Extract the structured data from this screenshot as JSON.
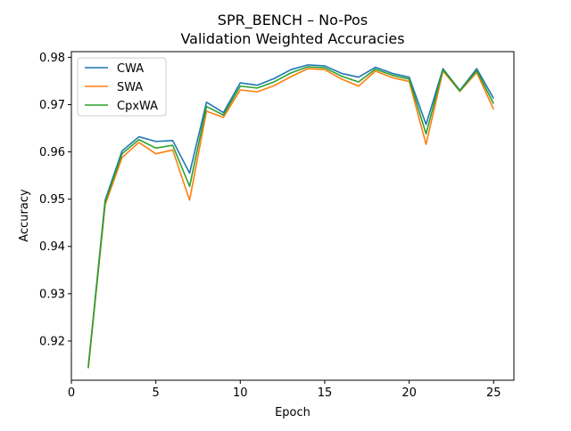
{
  "chart_data": {
    "type": "line",
    "title": "SPR_BENCH – No-Pos",
    "subtitle": "Validation Weighted Accuracies",
    "xlabel": "Epoch",
    "ylabel": "Accuracy",
    "xlim": [
      0,
      26.2
    ],
    "ylim": [
      0.9117,
      0.9812
    ],
    "xticks": [
      0,
      5,
      10,
      15,
      20,
      25
    ],
    "yticks": [
      0.92,
      0.93,
      0.94,
      0.95,
      0.96,
      0.97,
      0.98
    ],
    "grid": false,
    "legend_position": "top-left",
    "x": [
      1,
      2,
      3,
      4,
      5,
      6,
      7,
      8,
      9,
      10,
      11,
      12,
      13,
      14,
      15,
      16,
      17,
      18,
      19,
      20,
      21,
      22,
      23,
      24,
      25
    ],
    "series": [
      {
        "name": "CWA",
        "color": "#1f77b4",
        "values": [
          0.9145,
          0.9498,
          0.9602,
          0.9632,
          0.9622,
          0.9624,
          0.9555,
          0.9705,
          0.9683,
          0.9746,
          0.9741,
          0.9755,
          0.9774,
          0.9784,
          0.9782,
          0.9766,
          0.9758,
          0.9779,
          0.9766,
          0.9758,
          0.9658,
          0.9776,
          0.973,
          0.9776,
          0.9713
        ]
      },
      {
        "name": "SWA",
        "color": "#ff7f0e",
        "values": [
          0.9142,
          0.9488,
          0.9588,
          0.962,
          0.9596,
          0.9604,
          0.9498,
          0.9686,
          0.9673,
          0.9731,
          0.9727,
          0.974,
          0.9759,
          0.9776,
          0.9774,
          0.9754,
          0.9739,
          0.9771,
          0.9757,
          0.9749,
          0.9616,
          0.9771,
          0.9728,
          0.9768,
          0.969
        ]
      },
      {
        "name": "CpxWA",
        "color": "#2ca02c",
        "values": [
          0.9144,
          0.9494,
          0.9596,
          0.9626,
          0.9608,
          0.9614,
          0.9527,
          0.9696,
          0.9678,
          0.9739,
          0.9735,
          0.9748,
          0.9767,
          0.978,
          0.9778,
          0.976,
          0.9748,
          0.9775,
          0.9762,
          0.9754,
          0.9638,
          0.9774,
          0.9729,
          0.9772,
          0.9702
        ]
      }
    ]
  }
}
